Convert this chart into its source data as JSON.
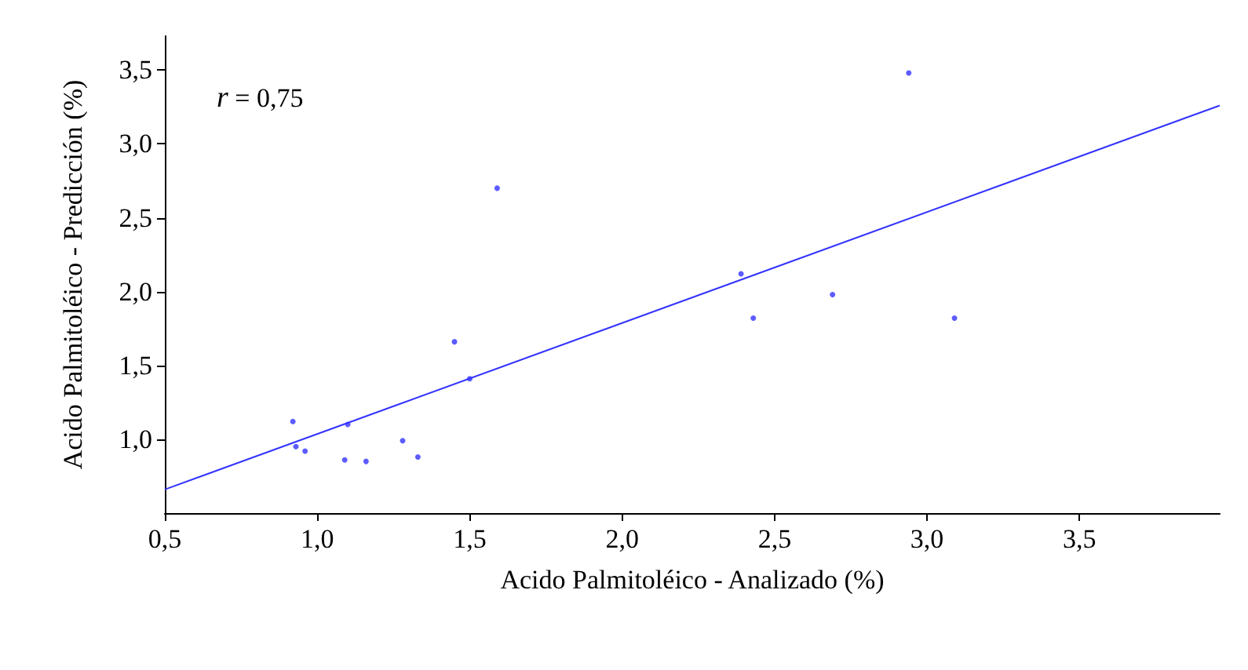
{
  "chart_data": {
    "type": "scatter",
    "xlabel": "Acido Palmitoléico - Analizado (%)",
    "ylabel": "Acido Palmitoléico - Predicción (%)",
    "annotations": [
      "r = 0,75"
    ],
    "x": [
      0.92,
      0.93,
      0.96,
      1.1,
      1.09,
      1.16,
      1.28,
      1.33,
      1.45,
      1.5,
      1.59,
      2.39,
      2.43,
      2.69,
      2.94,
      3.09
    ],
    "series": [
      {
        "color": "#3333ff",
        "values": [
          1.12,
          0.95,
          0.92,
          1.1,
          0.86,
          0.85,
          0.99,
          0.88,
          1.66,
          1.41,
          2.7,
          2.12,
          1.82,
          1.98,
          3.48,
          1.82
        ]
      },
      {
        "type": "line",
        "marker": "none",
        "color": "#3333ff",
        "x": [
          0.5,
          3.96
        ],
        "values": [
          0.66,
          3.26
        ]
      }
    ],
    "xlim": [
      0.5,
      3.96
    ],
    "ylim": [
      0.5,
      3.73
    ],
    "xticks": [
      {
        "value": 0.5,
        "label": "0,5"
      },
      {
        "value": 1,
        "label": "1,0"
      },
      {
        "value": 1.5,
        "label": "1,5"
      },
      {
        "value": 2,
        "label": "2,0"
      },
      {
        "value": 2.5,
        "label": "2,5"
      },
      {
        "value": 3,
        "label": "3,0"
      },
      {
        "value": 3.5,
        "label": "3,5"
      }
    ],
    "yticks": [
      {
        "value": 1,
        "label": "1,0"
      },
      {
        "value": 1.5,
        "label": "1,5"
      },
      {
        "value": 2,
        "label": "2,0"
      },
      {
        "value": 2.5,
        "label": "2,5"
      },
      {
        "value": 3,
        "label": "3,0"
      },
      {
        "value": 3.5,
        "label": "3,5"
      }
    ],
    "grid": false,
    "marker": "circle",
    "line_style": "solid"
  }
}
